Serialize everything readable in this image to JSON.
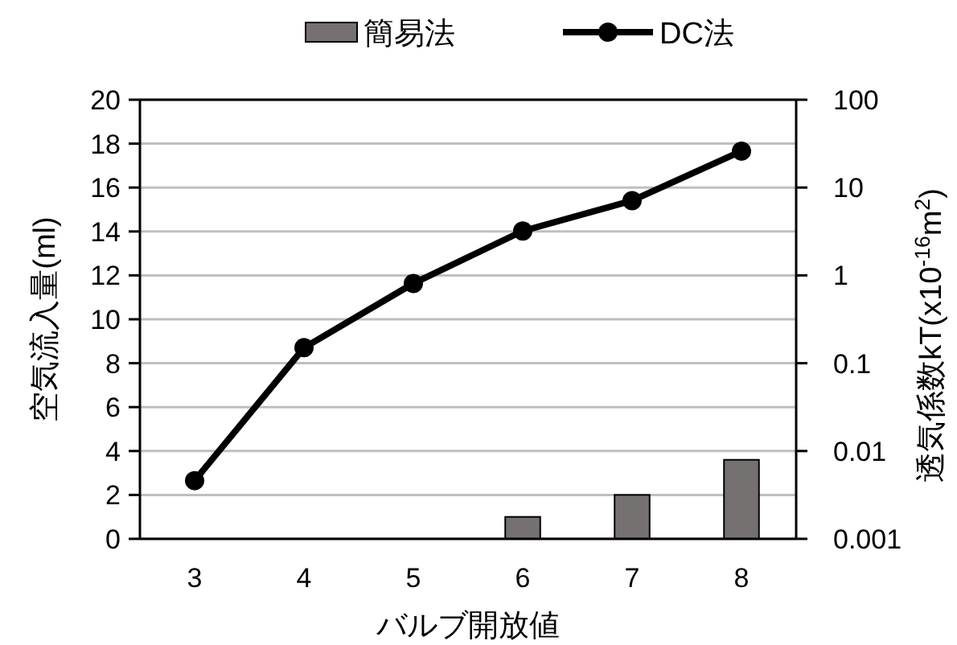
{
  "chart_data": {
    "type": "bar",
    "xlabel": "バルブ開放値",
    "ylabel": "空気流入量(ml)",
    "y2label": "透気係数kT(x10$^{-16}$m$^{2}$)",
    "categories": [
      "3",
      "4",
      "5",
      "6",
      "7",
      "8"
    ],
    "series": [
      {
        "name": "簡易法",
        "color": "#767171",
        "values": [
          null,
          null,
          null,
          1.0,
          2.0,
          3.6
        ]
      },
      {
        "name": "DC法",
        "type": "line",
        "axis": "y2",
        "color": "#000000",
        "marker": "circle",
        "line_style": "solid",
        "values": [
          0.0046,
          0.15,
          0.81,
          3.2,
          7.1,
          26
        ]
      }
    ],
    "ylim": [
      0,
      20
    ],
    "yticks": [
      0,
      2,
      4,
      6,
      8,
      10,
      12,
      14,
      16,
      18,
      20
    ],
    "y2lim": [
      0.001,
      100
    ],
    "y2ticks": [
      0.001,
      0.01,
      0.1,
      1,
      10,
      100
    ],
    "log": "y2",
    "grid": "y",
    "legend": "top"
  }
}
